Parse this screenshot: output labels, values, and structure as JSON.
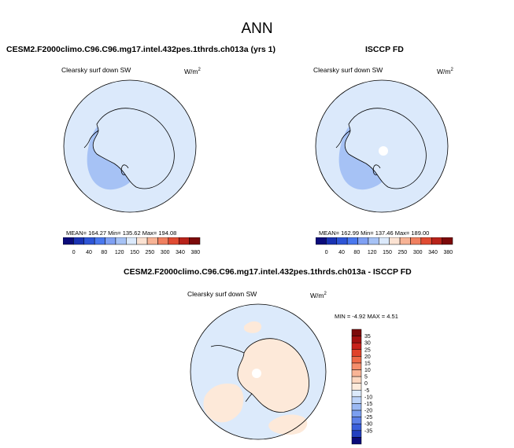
{
  "figure": {
    "title": "ANN"
  },
  "colors": {
    "ice_line": "#000000",
    "circle_border": "#000000",
    "land_white": "#ffffff",
    "abs_fill_light": "#dbe9fb",
    "abs_fill_mid": "#b7cef7",
    "abs_fill_blue": "#a6c2f5",
    "diff_light_blue": "#dceafb",
    "diff_peach": "#fde9d9"
  },
  "panels": {
    "left": {
      "title": "CESM2.F2000climo.C96.C96.mg17.intel.432pes.1thrds.ch013a (yrs 1)",
      "variable": "Clearsky surf down SW",
      "units_base": "W/m",
      "units_exp": "2",
      "stats_text": "MEAN= 164.27  Min= 135.62  Max= 194.08",
      "mean": 164.27,
      "min": 135.62,
      "max": 194.08
    },
    "right": {
      "title": "ISCCP FD",
      "variable": "Clearsky surf down SW",
      "units_base": "W/m",
      "units_exp": "2",
      "stats_text": "MEAN= 162.99  Min= 137.46  Max= 189.00",
      "mean": 162.99,
      "min": 137.46,
      "max": 189.0
    },
    "diff": {
      "title": "CESM2.F2000climo.C96.C96.mg17.intel.432pes.1thrds.ch013a - ISCCP FD",
      "variable": "Clearsky surf down SW",
      "units_base": "W/m",
      "units_exp": "2",
      "minmax_text": "MIN = -4.92 MAX =  4.51",
      "min": -4.92,
      "max": 4.51
    }
  },
  "chart_data": [
    {
      "type": "heatmap",
      "title": "CESM2.F2000climo.C96.C96.mg17.intel.432pes.1thrds.ch013a (yrs 1)",
      "colorbar_levels": [
        0,
        40,
        80,
        120,
        150,
        250,
        300,
        340,
        380
      ],
      "colorbar_colors": [
        "#0b0b7a",
        "#1a33b3",
        "#2e55d6",
        "#4a78ee",
        "#7fa0f3",
        "#a6c2f5",
        "#dbe9fb",
        "#fbe2d2",
        "#f7b395",
        "#f08060",
        "#e04b32",
        "#b8231a",
        "#7c0a0a"
      ]
    },
    {
      "type": "heatmap",
      "title": "ISCCP FD",
      "colorbar_levels": [
        0,
        40,
        80,
        120,
        150,
        250,
        300,
        340,
        380
      ],
      "colorbar_colors": [
        "#0b0b7a",
        "#1a33b3",
        "#2e55d6",
        "#4a78ee",
        "#7fa0f3",
        "#a6c2f5",
        "#dbe9fb",
        "#fbe2d2",
        "#f7b395",
        "#f08060",
        "#e04b32",
        "#b8231a",
        "#7c0a0a"
      ]
    },
    {
      "type": "heatmap",
      "title": "CESM2.F2000climo.C96.C96.mg17.intel.432pes.1thrds.ch013a - ISCCP FD",
      "colorbar_levels": [
        35,
        30,
        25,
        20,
        15,
        10,
        5,
        0,
        -5,
        -10,
        -15,
        -20,
        -25,
        -30,
        -35
      ],
      "colorbar_colors": [
        "#7c0a0a",
        "#a41010",
        "#c8201a",
        "#e0432a",
        "#ee6a48",
        "#f58e6c",
        "#f9b496",
        "#fcd7c0",
        "#fdebdc",
        "#dceafb",
        "#bcd3f8",
        "#9bb9f4",
        "#7c9ff0",
        "#5d80e8",
        "#3a5fdb",
        "#2340c0",
        "#0b0b7a"
      ]
    }
  ]
}
